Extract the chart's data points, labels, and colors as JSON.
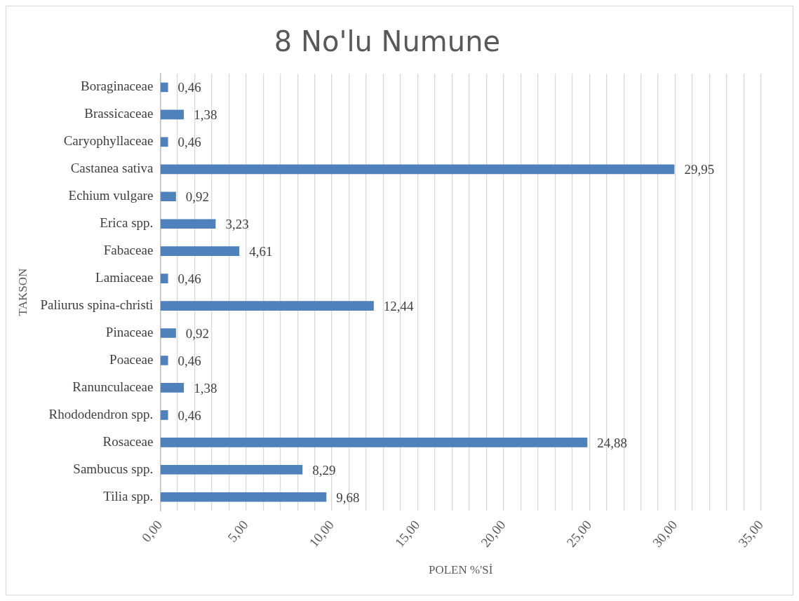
{
  "chart_data": {
    "type": "bar",
    "orientation": "horizontal",
    "title": "8 No'lu Numune",
    "xlabel": "POLEN %'Sİ",
    "ylabel": "TAKSON",
    "categories": [
      "Boraginaceae",
      "Brassicaceae",
      "Caryophyllaceae",
      "Castanea sativa",
      "Echium vulgare",
      "Erica spp.",
      "Fabaceae",
      "Lamiaceae",
      "Paliurus spina-christi",
      "Pinaceae",
      "Poaceae",
      "Ranunculaceae",
      "Rhododendron spp.",
      "Rosaceae",
      "Sambucus spp.",
      "Tilia spp."
    ],
    "values": [
      0.46,
      1.38,
      0.46,
      29.95,
      0.92,
      3.23,
      4.61,
      0.46,
      12.44,
      0.92,
      0.46,
      1.38,
      0.46,
      24.88,
      8.29,
      9.68
    ],
    "value_labels": [
      "0,46",
      "1,38",
      "0,46",
      "29,95",
      "0,92",
      "3,23",
      "4,61",
      "0,46",
      "12,44",
      "0,92",
      "0,46",
      "1,38",
      "0,46",
      "24,88",
      "8,29",
      "9,68"
    ],
    "color": "#4f81bd",
    "xlim": [
      0,
      35
    ],
    "xticks": [
      {
        "value": 0,
        "label": "0,00"
      },
      {
        "value": 1,
        "label": null
      },
      {
        "value": 2,
        "label": null
      },
      {
        "value": 3,
        "label": null
      },
      {
        "value": 4,
        "label": null
      },
      {
        "value": 5,
        "label": "5,00"
      },
      {
        "value": 6,
        "label": null
      },
      {
        "value": 7,
        "label": null
      },
      {
        "value": 8,
        "label": null
      },
      {
        "value": 9,
        "label": null
      },
      {
        "value": 10,
        "label": "10,00"
      },
      {
        "value": 11,
        "label": null
      },
      {
        "value": 12,
        "label": null
      },
      {
        "value": 13,
        "label": null
      },
      {
        "value": 14,
        "label": null
      },
      {
        "value": 15,
        "label": "15,00"
      },
      {
        "value": 16,
        "label": null
      },
      {
        "value": 17,
        "label": null
      },
      {
        "value": 18,
        "label": null
      },
      {
        "value": 19,
        "label": null
      },
      {
        "value": 20,
        "label": "20,00"
      },
      {
        "value": 21,
        "label": null
      },
      {
        "value": 22,
        "label": null
      },
      {
        "value": 23,
        "label": null
      },
      {
        "value": 24,
        "label": null
      },
      {
        "value": 25,
        "label": "25,00"
      },
      {
        "value": 26,
        "label": null
      },
      {
        "value": 27,
        "label": null
      },
      {
        "value": 28,
        "label": null
      },
      {
        "value": 29,
        "label": null
      },
      {
        "value": 30,
        "label": "30,00"
      },
      {
        "value": 31,
        "label": null
      },
      {
        "value": 32,
        "label": null
      },
      {
        "value": 33,
        "label": null
      },
      {
        "value": 34,
        "label": null
      },
      {
        "value": 35,
        "label": "35,00"
      }
    ],
    "grid": "x",
    "legend": false
  }
}
